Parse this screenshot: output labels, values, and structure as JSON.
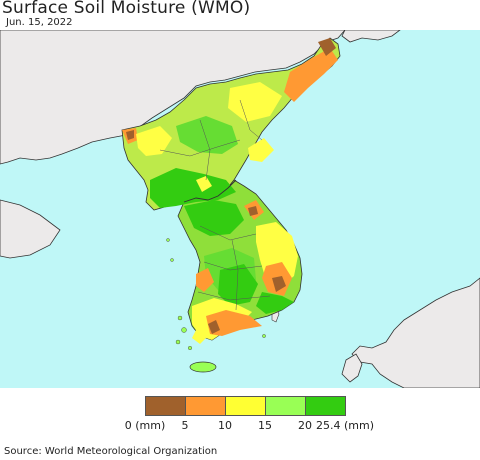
{
  "title": "Surface Soil Moisture (WMO)",
  "date": "Jun. 15, 2022",
  "source": "Source: World Meteorological Organization",
  "legend": {
    "bins": [
      {
        "color": "#a0612c"
      },
      {
        "color": "#ff9933"
      },
      {
        "color": "#ffff33"
      },
      {
        "color": "#99ff55"
      },
      {
        "color": "#33cc11"
      }
    ],
    "ticks": [
      "0 (mm)",
      "5",
      "10",
      "15",
      "20",
      "25.4 (mm)"
    ]
  },
  "colors": {
    "sea": "#bff7f7",
    "foreign_land": "#eceaea",
    "border": "#333333"
  }
}
